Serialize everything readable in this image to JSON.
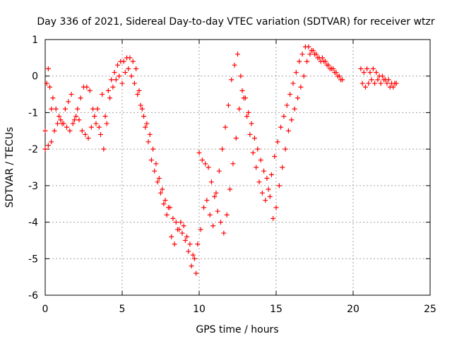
{
  "chart_data": {
    "type": "scatter",
    "title": "Day 336 of 2021, Sidereal Day-to-day VTEC variation (SDTVAR) for receiver wtzr",
    "xlabel": "GPS time / hours",
    "ylabel": "SDTVAR / TECUs",
    "xlim": [
      0,
      25
    ],
    "ylim": [
      -6,
      1
    ],
    "x_ticks": [
      0,
      5,
      10,
      15,
      20,
      25
    ],
    "y_ticks": [
      -6,
      -5,
      -4,
      -3,
      -2,
      -1,
      0,
      1
    ],
    "grid": true,
    "marker": "+",
    "color": "#ff0000",
    "series": [
      {
        "name": "SDTVAR",
        "x": [
          0.0,
          0.1,
          0.2,
          0.3,
          0.4,
          0.5,
          0.7,
          0.9,
          1.1,
          1.3,
          1.5,
          1.7,
          1.9,
          2.1,
          2.3,
          2.5,
          2.7,
          2.9,
          3.1,
          3.3,
          3.5,
          3.7,
          3.9,
          4.1,
          4.3,
          4.5,
          4.7,
          4.9,
          5.1,
          5.3,
          5.5,
          5.7,
          5.9,
          6.1,
          6.3,
          6.5,
          6.7,
          6.9,
          7.1,
          7.3,
          7.5,
          7.7,
          7.9,
          8.1,
          8.3,
          8.5,
          8.7,
          8.9,
          9.1,
          9.3,
          9.5,
          9.7,
          9.9,
          10.1,
          10.3,
          10.5,
          10.7,
          10.9,
          11.1,
          11.3,
          11.5,
          11.7,
          11.9,
          12.1,
          12.3,
          12.5,
          12.7,
          12.9,
          13.1,
          13.3,
          13.5,
          13.7,
          13.9,
          14.1,
          14.3,
          14.5,
          14.7,
          14.9,
          15.1,
          15.3,
          15.5,
          15.7,
          15.9,
          16.1,
          16.3,
          16.5,
          16.7,
          16.9,
          17.1,
          17.3,
          17.5,
          17.7,
          17.9,
          18.1,
          18.3,
          18.5,
          18.7,
          18.9,
          19.1,
          19.3,
          20.5,
          20.7,
          20.9,
          21.1,
          21.3,
          21.5,
          21.7,
          21.9,
          22.1,
          22.3,
          22.5,
          22.7,
          22.8
        ],
        "values": [
          -1.5,
          -0.2,
          0.2,
          -0.3,
          -0.9,
          -0.6,
          -0.9,
          -1.1,
          -1.3,
          -0.9,
          -0.7,
          -0.5,
          -1.2,
          -0.9,
          -0.6,
          -0.3,
          -0.3,
          -0.4,
          -0.9,
          -1.3,
          -1.4,
          -0.5,
          -1.1,
          -0.4,
          -0.1,
          0.1,
          0.3,
          0.4,
          0.4,
          0.5,
          0.5,
          0.4,
          0.2,
          -0.4,
          -0.9,
          -1.4,
          -1.8,
          -2.3,
          -2.6,
          -2.9,
          -3.2,
          -3.5,
          -3.8,
          -3.6,
          -3.9,
          -4.0,
          -4.2,
          -4.3,
          -4.5,
          -4.8,
          -5.2,
          -5.0,
          -4.6,
          -4.2,
          -3.6,
          -3.4,
          -3.8,
          -4.1,
          -3.2,
          -2.6,
          -2.0,
          -1.4,
          -0.8,
          -0.1,
          0.3,
          0.6,
          0.0,
          -0.6,
          -1.1,
          -1.6,
          -2.1,
          -2.5,
          -2.9,
          -3.2,
          -3.4,
          -3.1,
          -2.7,
          -2.2,
          -1.8,
          -1.4,
          -1.1,
          -0.8,
          -0.5,
          -0.2,
          0.1,
          0.4,
          0.6,
          0.8,
          0.8,
          0.7,
          0.6,
          0.5,
          0.4,
          0.4,
          0.3,
          0.2,
          0.2,
          0.1,
          0.0,
          -0.1,
          0.2,
          0.1,
          0.2,
          0.1,
          0.2,
          0.1,
          0.0,
          0.0,
          -0.1,
          -0.1,
          -0.2,
          -0.2,
          -0.2
        ]
      },
      {
        "name": "SDTVAR (spread)",
        "x": [
          0.0,
          0.2,
          0.4,
          0.6,
          0.8,
          1.0,
          1.2,
          1.4,
          1.6,
          1.8,
          2.0,
          2.2,
          2.4,
          2.6,
          2.8,
          3.0,
          3.2,
          3.4,
          3.6,
          3.8,
          4.0,
          4.2,
          4.4,
          4.6,
          4.8,
          5.0,
          5.2,
          5.4,
          5.6,
          5.8,
          6.0,
          6.2,
          6.4,
          6.6,
          6.8,
          7.0,
          7.2,
          7.4,
          7.6,
          7.8,
          8.0,
          8.2,
          8.4,
          8.6,
          8.8,
          9.0,
          9.2,
          9.4,
          9.6,
          9.8,
          10.0,
          10.2,
          10.4,
          10.6,
          10.8,
          11.0,
          11.2,
          11.4,
          11.6,
          11.8,
          12.0,
          12.2,
          12.4,
          12.6,
          12.8,
          13.0,
          13.2,
          13.4,
          13.6,
          13.8,
          14.0,
          14.2,
          14.4,
          14.6,
          14.8,
          15.0,
          15.2,
          15.4,
          15.6,
          15.8,
          16.0,
          16.2,
          16.4,
          16.6,
          16.8,
          17.0,
          17.2,
          17.4,
          17.6,
          17.8,
          18.0,
          18.2,
          18.4,
          18.6,
          18.8,
          19.0,
          19.2,
          20.6,
          20.8,
          21.0,
          21.2,
          21.4,
          21.6,
          21.8,
          22.0,
          22.2,
          22.4,
          22.6,
          22.8
        ],
        "values": [
          -2.0,
          -1.9,
          -1.8,
          -1.5,
          -1.3,
          -1.2,
          -1.3,
          -1.4,
          -1.5,
          -1.3,
          -1.1,
          -1.2,
          -1.5,
          -1.6,
          -1.7,
          -1.4,
          -1.1,
          -0.9,
          -1.6,
          -2.0,
          -1.3,
          -0.6,
          -0.3,
          -0.1,
          0.0,
          -0.2,
          0.1,
          0.2,
          0.0,
          -0.2,
          -0.5,
          -0.8,
          -1.1,
          -1.3,
          -1.6,
          -2.0,
          -2.4,
          -2.8,
          -3.1,
          -3.4,
          -3.6,
          -4.4,
          -4.6,
          -4.2,
          -4.0,
          -4.1,
          -4.4,
          -4.6,
          -4.9,
          -5.4,
          -2.1,
          -2.3,
          -2.4,
          -2.5,
          -2.9,
          -3.3,
          -3.7,
          -4.0,
          -4.3,
          -3.8,
          -3.1,
          -2.4,
          -1.7,
          -0.9,
          -0.4,
          -0.6,
          -1.0,
          -1.3,
          -1.7,
          -2.0,
          -2.3,
          -2.6,
          -2.8,
          -3.3,
          -3.9,
          -3.6,
          -3.0,
          -2.5,
          -2.0,
          -1.5,
          -1.2,
          -0.9,
          -0.6,
          -0.3,
          0.0,
          0.4,
          0.6,
          0.7,
          0.6,
          0.5,
          0.5,
          0.4,
          0.3,
          0.2,
          0.1,
          0.0,
          -0.1,
          -0.2,
          -0.3,
          -0.2,
          -0.1,
          -0.2,
          -0.1,
          -0.2,
          -0.1,
          -0.2,
          -0.3,
          -0.3,
          -0.2
        ]
      }
    ]
  }
}
